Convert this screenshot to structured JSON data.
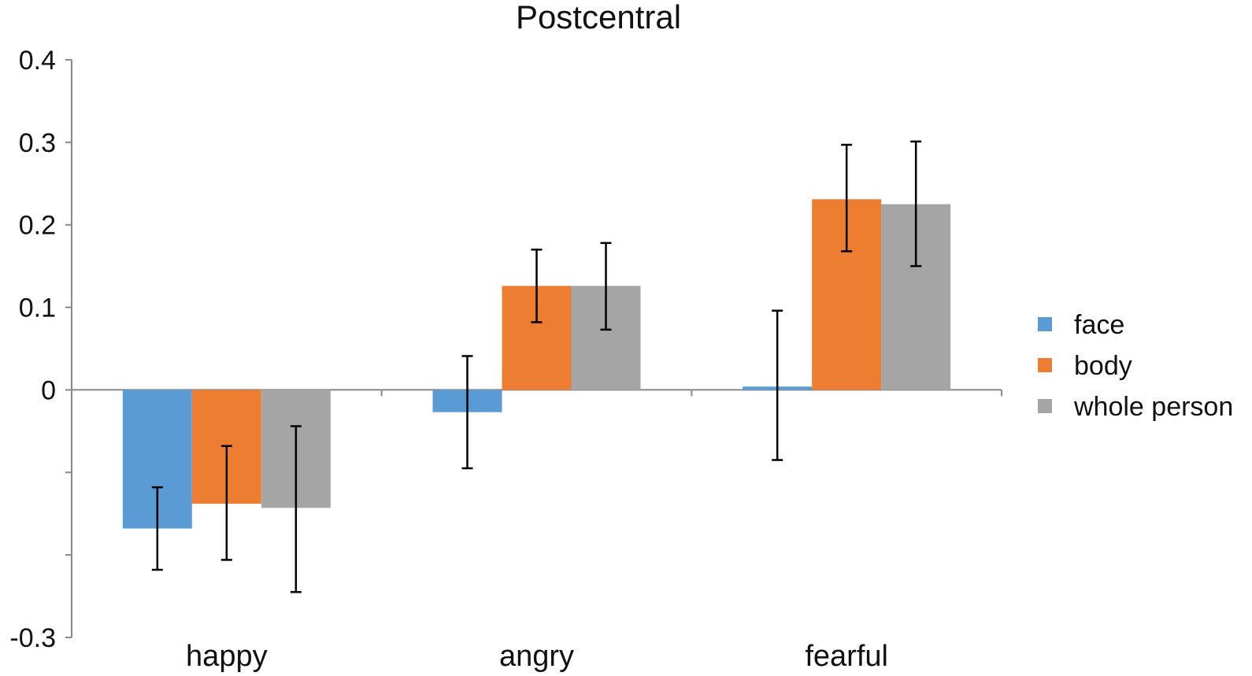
{
  "chart_data": {
    "type": "bar",
    "title": "Postcentral",
    "xlabel": "",
    "ylabel": "",
    "categories": [
      "happy",
      "angry",
      "fearful"
    ],
    "ylim": [
      -0.3,
      0.4
    ],
    "y_ticks": [
      {
        "value": 0.4,
        "label": "0.4"
      },
      {
        "value": 0.3,
        "label": "0.3"
      },
      {
        "value": 0.2,
        "label": "0.2"
      },
      {
        "value": 0.1,
        "label": "0.1"
      },
      {
        "value": 0.0,
        "label": "0"
      },
      {
        "value": -0.1,
        "label": ""
      },
      {
        "value": -0.2,
        "label": ""
      },
      {
        "value": -0.3,
        "label": "-0.3"
      }
    ],
    "grid": false,
    "legend_position": "right",
    "series": [
      {
        "name": "face",
        "color": "#5b9bd5",
        "values": [
          -0.168,
          -0.027,
          0.004
        ],
        "error_low": [
          -0.218,
          -0.095,
          -0.085
        ],
        "error_high": [
          -0.118,
          0.041,
          0.096
        ]
      },
      {
        "name": "body",
        "color": "#ed7d31",
        "values": [
          -0.138,
          0.126,
          0.231
        ],
        "error_low": [
          -0.206,
          0.082,
          0.168
        ],
        "error_high": [
          -0.068,
          0.17,
          0.297
        ]
      },
      {
        "name": "whole person",
        "color": "#a5a5a5",
        "values": [
          -0.143,
          0.126,
          0.225
        ],
        "error_low": [
          -0.245,
          0.073,
          0.15
        ],
        "error_high": [
          -0.044,
          0.178,
          0.301
        ]
      }
    ]
  }
}
